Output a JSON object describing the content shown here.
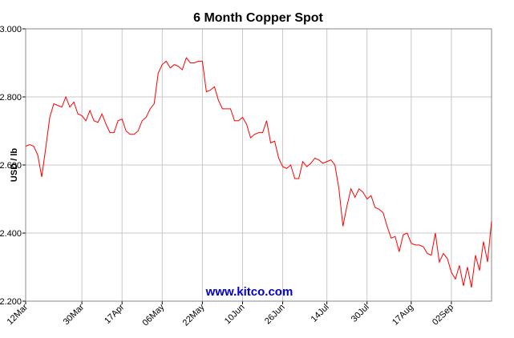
{
  "chart_data": {
    "type": "line",
    "title": "6 Month Copper Spot",
    "y_label": "USD / lb",
    "watermark": "www.kitco.com",
    "categories": [
      "12Mar",
      null,
      null,
      null,
      null,
      null,
      null,
      null,
      null,
      null,
      null,
      null,
      null,
      null,
      "30Mar",
      null,
      null,
      null,
      null,
      null,
      null,
      null,
      null,
      null,
      "17Apr",
      null,
      null,
      null,
      null,
      null,
      null,
      null,
      null,
      null,
      "06May",
      null,
      null,
      null,
      null,
      null,
      null,
      null,
      null,
      null,
      "22May",
      null,
      null,
      null,
      null,
      null,
      null,
      null,
      null,
      null,
      "10Jun",
      null,
      null,
      null,
      null,
      null,
      null,
      null,
      null,
      null,
      "26Jun",
      null,
      null,
      null,
      null,
      null,
      null,
      null,
      null,
      null,
      null,
      "14Jul",
      null,
      null,
      null,
      null,
      null,
      null,
      null,
      null,
      null,
      "30Jul",
      null,
      null,
      null,
      null,
      null,
      null,
      null,
      null,
      null,
      null,
      "17Aug",
      null,
      null,
      null,
      null,
      null,
      null,
      null,
      null,
      null,
      "02Sep",
      null,
      null,
      null,
      null,
      null,
      null,
      null,
      null,
      null,
      null
    ],
    "values": [
      2.655,
      2.66,
      2.655,
      2.63,
      2.565,
      2.65,
      2.74,
      2.78,
      2.775,
      2.77,
      2.8,
      2.77,
      2.785,
      2.75,
      2.745,
      2.73,
      2.76,
      2.73,
      2.725,
      2.75,
      2.72,
      2.695,
      2.695,
      2.73,
      2.735,
      2.7,
      2.69,
      2.69,
      2.7,
      2.73,
      2.74,
      2.765,
      2.78,
      2.87,
      2.895,
      2.905,
      2.885,
      2.895,
      2.89,
      2.88,
      2.915,
      2.9,
      2.9,
      2.905,
      2.905,
      2.815,
      2.82,
      2.83,
      2.79,
      2.765,
      2.765,
      2.765,
      2.73,
      2.73,
      2.74,
      2.72,
      2.68,
      2.69,
      2.695,
      2.695,
      2.73,
      2.665,
      2.67,
      2.62,
      2.595,
      2.59,
      2.6,
      2.56,
      2.56,
      2.61,
      2.595,
      2.605,
      2.62,
      2.615,
      2.605,
      2.61,
      2.615,
      2.6,
      2.53,
      2.42,
      2.48,
      2.53,
      2.505,
      2.53,
      2.52,
      2.5,
      2.51,
      2.475,
      2.47,
      2.46,
      2.42,
      2.385,
      2.39,
      2.345,
      2.395,
      2.4,
      2.37,
      2.365,
      2.365,
      2.36,
      2.34,
      2.335,
      2.4,
      2.315,
      2.34,
      2.325,
      2.285,
      2.265,
      2.305,
      2.245,
      2.3,
      2.24,
      2.335,
      2.29,
      2.375,
      2.315,
      2.435
    ],
    "color": "#ff0000",
    "ylim": [
      2.2,
      3.0
    ],
    "yticks": [
      {
        "value": 2.2,
        "label": "2.200"
      },
      {
        "value": 2.4,
        "label": "2.400"
      },
      {
        "value": 2.6,
        "label": "2.600"
      },
      {
        "value": 2.8,
        "label": "2.800"
      },
      {
        "value": 3.0,
        "label": "3.000"
      }
    ],
    "grid": true
  }
}
